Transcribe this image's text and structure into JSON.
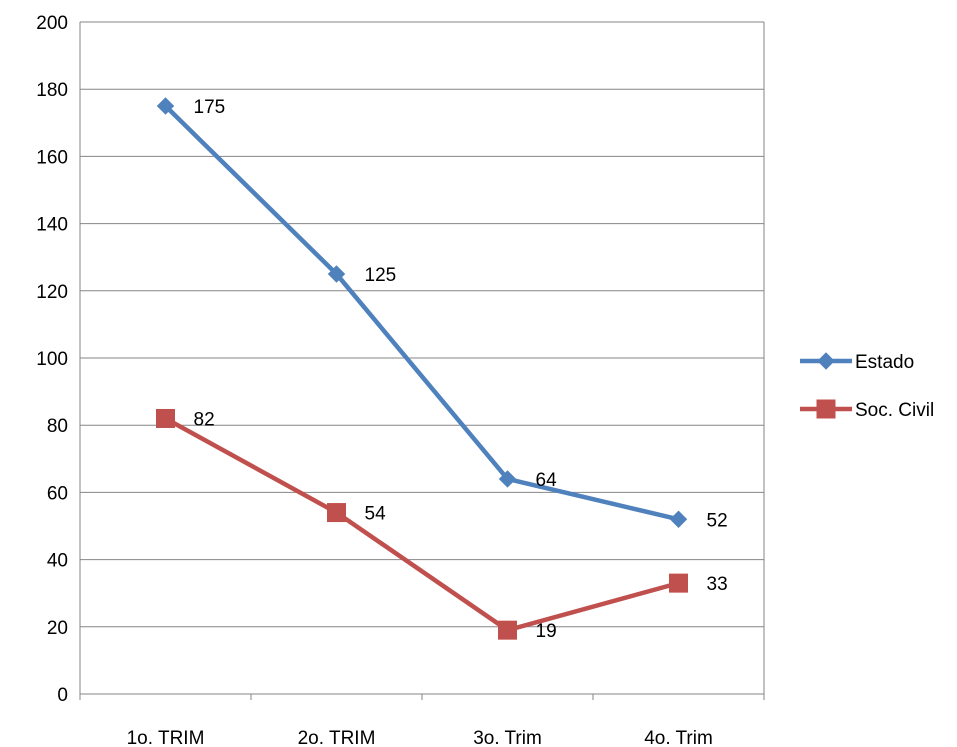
{
  "chart_data": {
    "type": "line",
    "title": "",
    "xlabel": "",
    "ylabel": "",
    "categories": [
      "1o. TRIM",
      "2o. TRIM",
      "3o. Trim",
      "4o. Trim"
    ],
    "ylim": [
      0,
      200
    ],
    "yticks": [
      0,
      20,
      40,
      60,
      80,
      100,
      120,
      140,
      160,
      180,
      200
    ],
    "grid": true,
    "legend": "right",
    "series": [
      {
        "name": "Estado",
        "values": [
          175,
          125,
          64,
          52
        ],
        "color": "#4F81BD",
        "marker": "diamond"
      },
      {
        "name": "Soc. Civil",
        "values": [
          82,
          54,
          19,
          33
        ],
        "color": "#C0504D",
        "marker": "square"
      }
    ]
  }
}
